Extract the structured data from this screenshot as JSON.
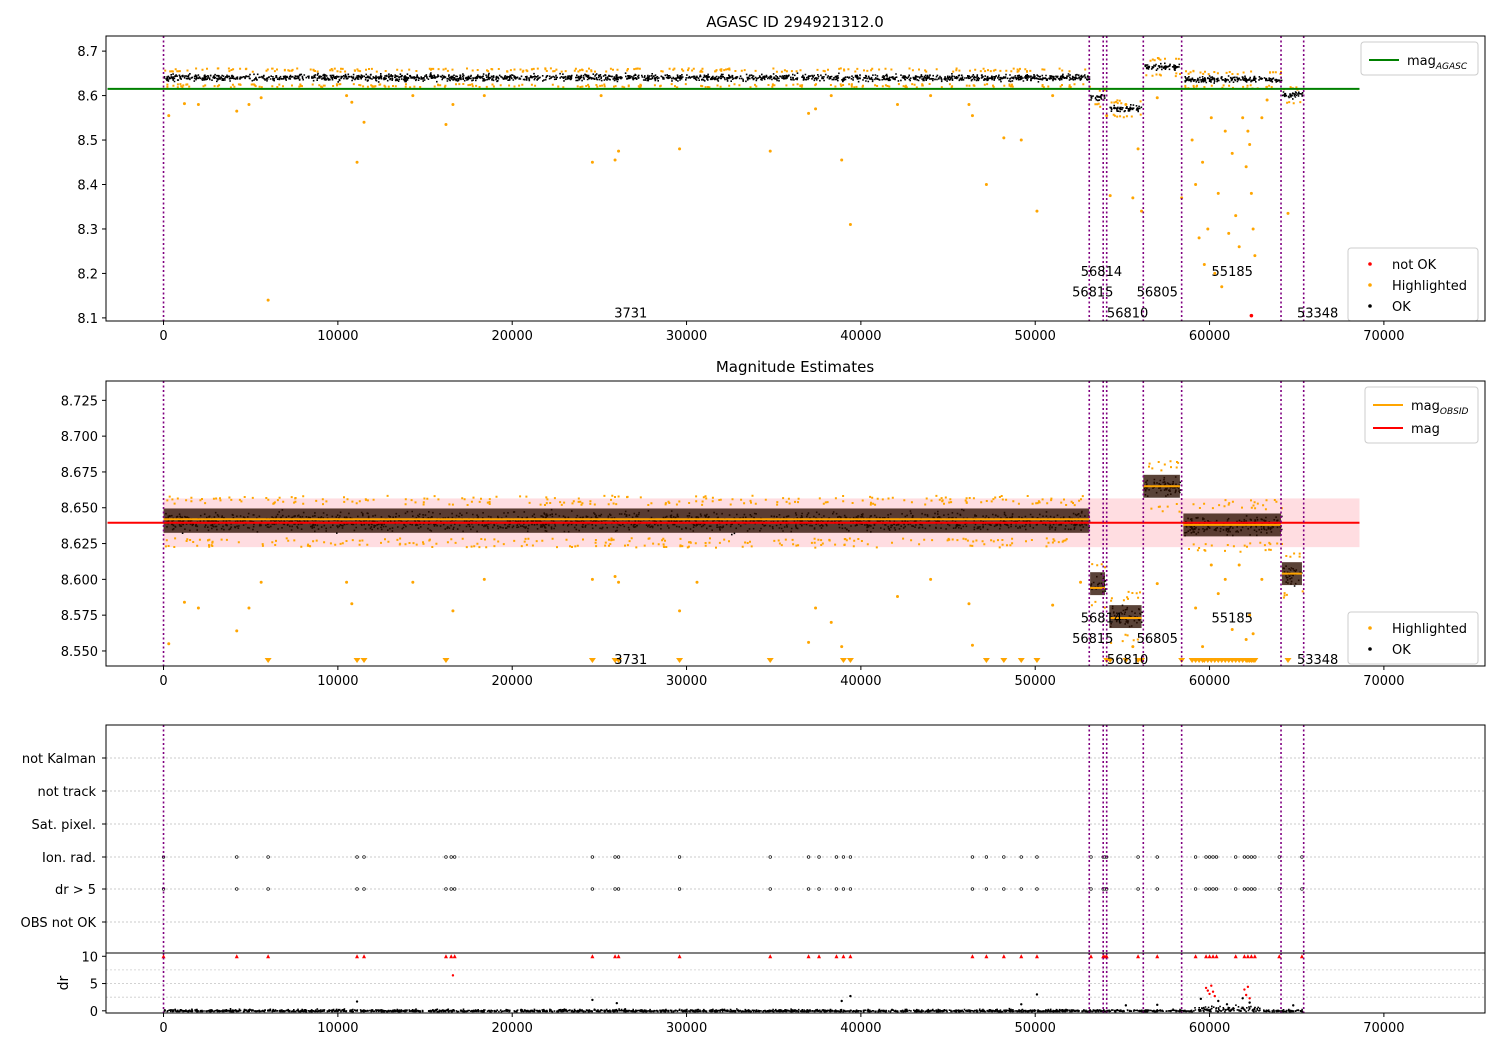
{
  "chart_data": [
    {
      "id": "top",
      "type": "scatter",
      "title": "AGASC ID 294921312.0",
      "xlim": [
        -3300,
        75800
      ],
      "ylim": [
        8.093,
        8.734
      ],
      "x_ticks": [
        0,
        10000,
        20000,
        30000,
        40000,
        50000,
        60000,
        70000
      ],
      "y_ticks": [
        8.1,
        8.2,
        8.3,
        8.4,
        8.5,
        8.6,
        8.7
      ],
      "y_tick_decimals": 1,
      "grid": false,
      "legend_top": {
        "placement": "top-right",
        "entries": [
          {
            "label": "mag",
            "sub": "AGASC",
            "color": "#008000",
            "kind": "line"
          }
        ]
      },
      "legend_bottom": {
        "placement": "lower-right",
        "entries": [
          {
            "label": "not OK",
            "color": "#ff0000",
            "kind": "marker"
          },
          {
            "label": "Highlighted",
            "color": "#ffa500",
            "kind": "marker"
          },
          {
            "label": "OK",
            "color": "#000000",
            "kind": "marker"
          }
        ]
      },
      "hline": {
        "y": 8.615,
        "color": "#008000",
        "x_range": [
          0,
          68600
        ]
      },
      "segments": [
        {
          "x": [
            0,
            53100
          ],
          "center": 8.642,
          "spread": 0.013
        },
        {
          "x": [
            53150,
            54000
          ],
          "center": 8.598,
          "spread": 0.013
        },
        {
          "x": [
            54250,
            56100
          ],
          "center": 8.572,
          "spread": 0.012
        },
        {
          "x": [
            56200,
            58300
          ],
          "center": 8.666,
          "spread": 0.013
        },
        {
          "x": [
            58500,
            64100
          ],
          "center": 8.638,
          "spread": 0.012
        },
        {
          "x": [
            64150,
            65300
          ],
          "center": 8.603,
          "spread": 0.012
        }
      ],
      "highlighted_points": [
        [
          300,
          8.555
        ],
        [
          1200,
          8.582
        ],
        [
          2000,
          8.58
        ],
        [
          4200,
          8.565
        ],
        [
          4900,
          8.58
        ],
        [
          5600,
          8.595
        ],
        [
          6000,
          8.14
        ],
        [
          10500,
          8.6
        ],
        [
          10800,
          8.585
        ],
        [
          11100,
          8.45
        ],
        [
          11500,
          8.54
        ],
        [
          14300,
          8.6
        ],
        [
          16200,
          8.535
        ],
        [
          16600,
          8.58
        ],
        [
          18400,
          8.6
        ],
        [
          24600,
          8.45
        ],
        [
          25100,
          8.6
        ],
        [
          25900,
          8.455
        ],
        [
          26100,
          8.475
        ],
        [
          29600,
          8.48
        ],
        [
          34800,
          8.475
        ],
        [
          37000,
          8.56
        ],
        [
          37400,
          8.57
        ],
        [
          38300,
          8.6
        ],
        [
          38900,
          8.455
        ],
        [
          39400,
          8.31
        ],
        [
          42100,
          8.58
        ],
        [
          44000,
          8.6
        ],
        [
          46200,
          8.58
        ],
        [
          46400,
          8.555
        ],
        [
          47200,
          8.4
        ],
        [
          48200,
          8.505
        ],
        [
          49200,
          8.5
        ],
        [
          50100,
          8.34
        ],
        [
          51000,
          8.6
        ],
        [
          54100,
          8.555
        ],
        [
          54300,
          8.375
        ],
        [
          55200,
          8.58
        ],
        [
          55600,
          8.37
        ],
        [
          55900,
          8.48
        ],
        [
          56100,
          8.34
        ],
        [
          57000,
          8.595
        ],
        [
          58400,
          8.37
        ],
        [
          59000,
          8.5
        ],
        [
          59200,
          8.4
        ],
        [
          59400,
          8.28
        ],
        [
          59600,
          8.45
        ],
        [
          59700,
          8.22
        ],
        [
          59900,
          8.3
        ],
        [
          60100,
          8.55
        ],
        [
          60300,
          8.2
        ],
        [
          60500,
          8.38
        ],
        [
          60700,
          8.17
        ],
        [
          60900,
          8.52
        ],
        [
          61100,
          8.29
        ],
        [
          61300,
          8.47
        ],
        [
          61500,
          8.33
        ],
        [
          61700,
          8.26
        ],
        [
          61900,
          8.55
        ],
        [
          62100,
          8.44
        ],
        [
          62200,
          8.52
        ],
        [
          62300,
          8.49
        ],
        [
          62400,
          8.38
        ],
        [
          62500,
          8.3
        ],
        [
          62600,
          8.24
        ],
        [
          63000,
          8.55
        ],
        [
          63300,
          8.59
        ],
        [
          64500,
          8.335
        ]
      ],
      "notok_points": [
        [
          62400,
          8.105
        ]
      ],
      "vlines": [
        0,
        53100,
        53900,
        54100,
        56200,
        58400,
        64100,
        65400
      ],
      "vline_color": "#800080",
      "annotations": [
        {
          "text": "3731",
          "x": 26800,
          "y": 8.112
        },
        {
          "text": "56814",
          "x": 53800,
          "y": 8.205
        },
        {
          "text": "56815",
          "x": 53300,
          "y": 8.159
        },
        {
          "text": "56810",
          "x": 55300,
          "y": 8.112
        },
        {
          "text": "56805",
          "x": 57000,
          "y": 8.159
        },
        {
          "text": "55185",
          "x": 61300,
          "y": 8.205
        },
        {
          "text": "53348",
          "x": 66200,
          "y": 8.112
        }
      ]
    },
    {
      "id": "mid",
      "type": "scatter",
      "title": "Magnitude Estimates",
      "xlim": [
        -3300,
        75800
      ],
      "ylim": [
        8.5395,
        8.7385
      ],
      "x_ticks": [
        0,
        10000,
        20000,
        30000,
        40000,
        50000,
        60000,
        70000
      ],
      "y_ticks": [
        8.55,
        8.575,
        8.6,
        8.625,
        8.65,
        8.675,
        8.7,
        8.725
      ],
      "y_tick_decimals": 3,
      "grid": false,
      "legend_top": {
        "placement": "top-right",
        "entries": [
          {
            "label": "mag",
            "sub": "OBSID",
            "color": "#ffa500",
            "kind": "line"
          },
          {
            "label": "mag",
            "sub": "",
            "color": "#ff0000",
            "kind": "line"
          }
        ]
      },
      "legend_bottom": {
        "placement": "lower-right",
        "entries": [
          {
            "label": "Highlighted",
            "color": "#ffa500",
            "kind": "marker"
          },
          {
            "label": "OK",
            "color": "#000000",
            "kind": "marker"
          }
        ]
      },
      "hline": {
        "y": 8.6395,
        "color": "#ff0000",
        "x_range": [
          0,
          68600
        ]
      },
      "band": {
        "y": [
          8.6225,
          8.6565
        ],
        "x_range": [
          0,
          68600
        ],
        "color": "#ffdde1"
      },
      "segments": [
        {
          "x": [
            0,
            53100
          ],
          "center": 8.641,
          "spread": 0.011,
          "band": 0.0085,
          "obsid": 8.642
        },
        {
          "x": [
            53150,
            54000
          ],
          "center": 8.597,
          "spread": 0.011,
          "band": 0.008,
          "obsid": 8.594
        },
        {
          "x": [
            54250,
            56100
          ],
          "center": 8.574,
          "spread": 0.011,
          "band": 0.008,
          "obsid": 8.573
        },
        {
          "x": [
            56200,
            58300
          ],
          "center": 8.665,
          "spread": 0.011,
          "band": 0.008,
          "obsid": 8.665
        },
        {
          "x": [
            58500,
            64100
          ],
          "center": 8.638,
          "spread": 0.011,
          "band": 0.008,
          "obsid": 8.638
        },
        {
          "x": [
            64150,
            65300
          ],
          "center": 8.604,
          "spread": 0.011,
          "band": 0.008,
          "obsid": 8.604
        }
      ],
      "highlighted_points": [
        [
          300,
          8.555
        ],
        [
          1200,
          8.584
        ],
        [
          2000,
          8.58
        ],
        [
          4200,
          8.564
        ],
        [
          4900,
          8.58
        ],
        [
          5600,
          8.598
        ],
        [
          10500,
          8.598
        ],
        [
          10800,
          8.583
        ],
        [
          14300,
          8.598
        ],
        [
          16600,
          8.578
        ],
        [
          18400,
          8.6
        ],
        [
          24600,
          8.6
        ],
        [
          25900,
          8.602
        ],
        [
          26100,
          8.598
        ],
        [
          29600,
          8.578
        ],
        [
          30600,
          8.598
        ],
        [
          37000,
          8.556
        ],
        [
          37400,
          8.58
        ],
        [
          38300,
          8.57
        ],
        [
          38900,
          8.553
        ],
        [
          42100,
          8.588
        ],
        [
          44000,
          8.6
        ],
        [
          46200,
          8.583
        ],
        [
          46400,
          8.554
        ],
        [
          51000,
          8.582
        ],
        [
          52600,
          8.598
        ],
        [
          55600,
          8.553
        ],
        [
          57000,
          8.597
        ],
        [
          59200,
          8.58
        ],
        [
          59600,
          8.553
        ],
        [
          60100,
          8.61
        ],
        [
          60500,
          8.59
        ],
        [
          60900,
          8.6
        ],
        [
          61300,
          8.565
        ],
        [
          61700,
          8.61
        ],
        [
          62100,
          8.558
        ],
        [
          62300,
          8.575
        ],
        [
          62500,
          8.562
        ],
        [
          63000,
          8.6
        ]
      ],
      "downward_markers": [
        6000,
        11100,
        11500,
        16200,
        24600,
        25900,
        26100,
        29600,
        34800,
        39000,
        39400,
        47200,
        48200,
        49200,
        50100,
        54100,
        54300,
        55200,
        55900,
        56100,
        58400,
        59000,
        59200,
        59400,
        59600,
        59700,
        59900,
        60100,
        60300,
        60500,
        60700,
        60900,
        61100,
        61300,
        61500,
        61700,
        61900,
        62100,
        62200,
        62300,
        62400,
        62500,
        62600,
        64500
      ],
      "vlines": [
        0,
        53100,
        53900,
        54100,
        56200,
        58400,
        64100,
        65400
      ],
      "vline_color": "#800080",
      "annotations": [
        {
          "text": "3731",
          "x": 26800,
          "y": 8.5445
        },
        {
          "text": "56814",
          "x": 53800,
          "y": 8.5735
        },
        {
          "text": "56815",
          "x": 53300,
          "y": 8.559
        },
        {
          "text": "56810",
          "x": 55300,
          "y": 8.5445
        },
        {
          "text": "56805",
          "x": 57000,
          "y": 8.559
        },
        {
          "text": "55185",
          "x": 61300,
          "y": 8.5735
        },
        {
          "text": "53348",
          "x": 66200,
          "y": 8.5445
        }
      ]
    },
    {
      "id": "flags",
      "type": "scatter",
      "xlim": [
        -3300,
        75800
      ],
      "categories": [
        "not Kalman",
        "not track",
        "Sat. pixel.",
        "Ion. rad.",
        "dr > 5",
        "OBS not OK"
      ],
      "flag_rows": {
        "Ion. rad.": [
          0,
          4200,
          6000,
          11100,
          11500,
          16200,
          16500,
          16700,
          24600,
          25900,
          26100,
          29600,
          34800,
          37000,
          37600,
          38600,
          39000,
          39400,
          46400,
          47200,
          48200,
          49200,
          50100,
          53200,
          53900,
          54000,
          54100,
          55900,
          57000,
          59200,
          59800,
          60000,
          60200,
          60400,
          61500,
          62000,
          62200,
          62400,
          62600,
          64000,
          65300
        ],
        "dr > 5": [
          0,
          4200,
          6000,
          11100,
          11500,
          16200,
          16500,
          16700,
          24600,
          25900,
          26100,
          29600,
          34800,
          37000,
          37600,
          38600,
          39000,
          39400,
          46400,
          47200,
          48200,
          49200,
          50100,
          53200,
          53900,
          54000,
          54100,
          55900,
          57000,
          59200,
          59800,
          60000,
          60200,
          60400,
          61500,
          62000,
          62200,
          62400,
          62600,
          64000,
          65300
        ]
      },
      "vlines": [
        0,
        53100,
        53900,
        54100,
        56200,
        58400,
        64100,
        65400
      ]
    },
    {
      "id": "dr",
      "type": "scatter",
      "ylabel": "dr",
      "xlim": [
        -3300,
        75800
      ],
      "ylim": [
        -0.4,
        10.6
      ],
      "x_ticks": [
        0,
        10000,
        20000,
        30000,
        40000,
        50000,
        60000,
        70000
      ],
      "y_ticks": [
        0,
        5,
        10
      ],
      "capped_points": [
        0,
        4200,
        6000,
        11100,
        11500,
        16200,
        16500,
        16700,
        24600,
        25900,
        26100,
        29600,
        34800,
        37000,
        37600,
        38600,
        39000,
        39400,
        46400,
        47200,
        48200,
        49200,
        50100,
        53200,
        53900,
        54000,
        54100,
        55900,
        57000,
        59200,
        59800,
        60000,
        60200,
        60400,
        61500,
        62000,
        62200,
        62400,
        62600,
        64000,
        65300
      ],
      "red_points": [
        [
          59800,
          4.2
        ],
        [
          59900,
          3.7
        ],
        [
          60000,
          3.1
        ],
        [
          60100,
          4.6
        ],
        [
          60200,
          3.5
        ],
        [
          60300,
          2.7
        ],
        [
          62000,
          3.9
        ],
        [
          62100,
          2.9
        ],
        [
          62200,
          4.4
        ],
        [
          62300,
          2.3
        ],
        [
          16600,
          6.5
        ]
      ],
      "outliers": [
        [
          11100,
          1.7
        ],
        [
          24600,
          2.0
        ],
        [
          26000,
          1.4
        ],
        [
          39400,
          2.7
        ],
        [
          38900,
          1.8
        ],
        [
          50100,
          3.0
        ],
        [
          49200,
          1.2
        ],
        [
          55200,
          1.0
        ],
        [
          57000,
          1.1
        ],
        [
          59500,
          2.2
        ],
        [
          60500,
          1.8
        ],
        [
          61000,
          1.2
        ],
        [
          61900,
          2.3
        ],
        [
          62300,
          1.5
        ],
        [
          64800,
          1.0
        ]
      ],
      "vlines": [
        0,
        53100,
        53900,
        54100,
        56200,
        58400,
        64100,
        65400
      ]
    }
  ]
}
